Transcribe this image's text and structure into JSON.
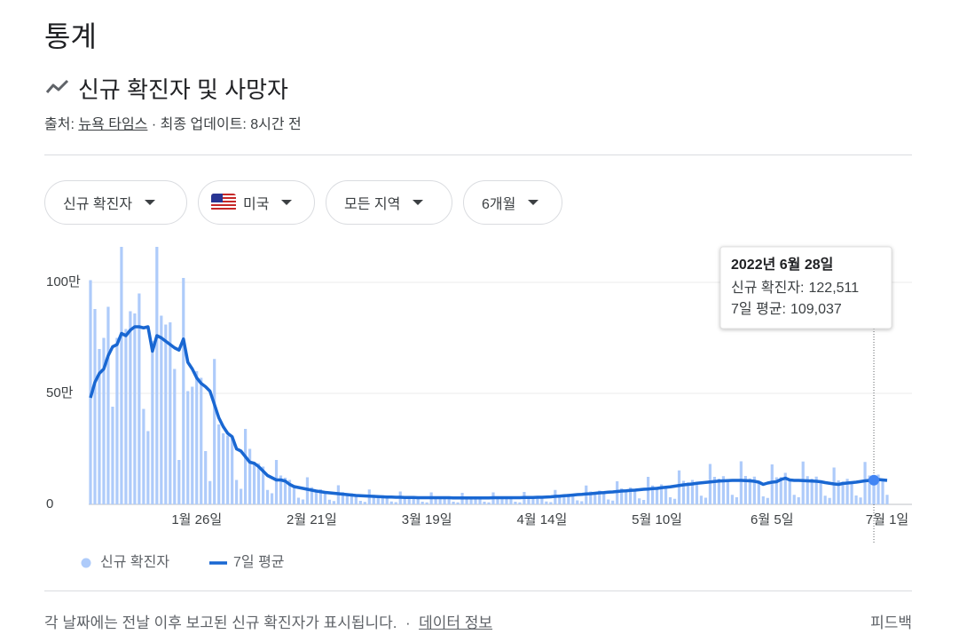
{
  "header": {
    "title": "통계",
    "subtitle": "신규 확진자 및 사망자",
    "source_prefix": "출처:",
    "source": "뉴욕 타임스",
    "updated": "· 최종 업데이트: 8시간 전"
  },
  "filters": [
    "신규 확진자",
    "미국",
    "모든 지역",
    "6개월"
  ],
  "chart_data": {
    "type": "combo",
    "categories": [
      null,
      null,
      null,
      null,
      null,
      null,
      null,
      null,
      null,
      null,
      null,
      null,
      null,
      null,
      null,
      null,
      null,
      null,
      null,
      null,
      null,
      null,
      null,
      null,
      "1월 26일",
      null,
      null,
      null,
      null,
      null,
      null,
      null,
      null,
      null,
      null,
      null,
      null,
      null,
      null,
      null,
      null,
      null,
      null,
      null,
      null,
      null,
      null,
      null,
      null,
      null,
      "2월 21일",
      null,
      null,
      null,
      null,
      null,
      null,
      null,
      null,
      null,
      null,
      null,
      null,
      null,
      null,
      null,
      null,
      null,
      null,
      null,
      null,
      null,
      null,
      null,
      null,
      null,
      "3월 19일",
      null,
      null,
      null,
      null,
      null,
      null,
      null,
      null,
      null,
      null,
      null,
      null,
      null,
      null,
      null,
      null,
      null,
      null,
      null,
      null,
      null,
      null,
      null,
      null,
      null,
      "4월 14일",
      null,
      null,
      null,
      null,
      null,
      null,
      null,
      null,
      null,
      null,
      null,
      null,
      null,
      null,
      null,
      null,
      null,
      null,
      null,
      null,
      null,
      null,
      null,
      null,
      null,
      "5월 10일",
      null,
      null,
      null,
      null,
      null,
      null,
      null,
      null,
      null,
      null,
      null,
      null,
      null,
      null,
      null,
      null,
      null,
      null,
      null,
      null,
      null,
      null,
      null,
      null,
      null,
      "6월 5일",
      null,
      null,
      null,
      null,
      null,
      null,
      null,
      null,
      null,
      null,
      null,
      null,
      null,
      null,
      null,
      null,
      null,
      null,
      null,
      null,
      null,
      null,
      null,
      null,
      null,
      "7월 1일"
    ],
    "series": [
      {
        "name": "신규 확진자",
        "type": "bar",
        "color": "#aecbfa",
        "values": [
          1010000,
          880000,
          700000,
          750000,
          890000,
          440000,
          750000,
          1160000,
          790000,
          870000,
          860000,
          950000,
          430000,
          330000,
          735000,
          1160000,
          850000,
          810000,
          820000,
          610000,
          200000,
          1020000,
          510000,
          530000,
          600000,
          570000,
          240000,
          105000,
          655000,
          360000,
          320000,
          310000,
          300000,
          110000,
          70000,
          340000,
          250000,
          190000,
          185000,
          170000,
          65000,
          50000,
          200000,
          130000,
          120000,
          110000,
          80000,
          30000,
          22000,
          122000,
          77000,
          66000,
          68000,
          54000,
          21000,
          15000,
          86000,
          55000,
          48000,
          50000,
          40000,
          16000,
          11000,
          67000,
          43000,
          39000,
          41000,
          33000,
          13000,
          10000,
          58000,
          37000,
          34000,
          37000,
          30000,
          12000,
          9000,
          54000,
          36000,
          33000,
          36000,
          30000,
          12000,
          9000,
          52000,
          35000,
          32000,
          35000,
          29000,
          12000,
          9000,
          54000,
          36000,
          33000,
          36000,
          30000,
          12000,
          9000,
          56000,
          37000,
          34000,
          38000,
          32000,
          13000,
          10000,
          65000,
          44000,
          43000,
          48000,
          42000,
          18000,
          14000,
          85000,
          58000,
          55000,
          62000,
          53000,
          22000,
          17000,
          104000,
          72000,
          67000,
          76000,
          64000,
          27000,
          20000,
          124000,
          85000,
          79000,
          90000,
          77000,
          32000,
          25000,
          153000,
          106000,
          99000,
          110000,
          95000,
          39000,
          30000,
          182000,
          124000,
          116000,
          127000,
          106000,
          43000,
          32000,
          194000,
          128000,
          117000,
          125000,
          100000,
          36000,
          29000,
          180000,
          122000,
          123000,
          142000,
          110000,
          43000,
          32000,
          193000,
          127000,
          116000,
          125000,
          102000,
          39000,
          29000,
          166000,
          108000,
          103000,
          115000,
          98000,
          40000,
          31000,
          191000,
          130000,
          122511,
          134000,
          110000,
          43000
        ]
      },
      {
        "name": "7일 평균",
        "type": "line",
        "color": "#1967d2",
        "values": [
          480000,
          550000,
          590000,
          610000,
          670000,
          710000,
          720000,
          770000,
          760000,
          785000,
          800000,
          800000,
          795000,
          800000,
          690000,
          760000,
          750000,
          735000,
          720000,
          705000,
          695000,
          745000,
          640000,
          610000,
          570000,
          545000,
          530000,
          510000,
          450000,
          390000,
          350000,
          320000,
          305000,
          250000,
          240000,
          215000,
          190000,
          185000,
          170000,
          150000,
          130000,
          120000,
          110000,
          110000,
          105000,
          90000,
          80000,
          76000,
          72000,
          68000,
          64000,
          60000,
          57000,
          54000,
          52000,
          50000,
          48000,
          46000,
          44000,
          42000,
          40000,
          39000,
          38000,
          37000,
          36000,
          35000,
          34000,
          33000,
          33000,
          32000,
          32000,
          31000,
          31000,
          31000,
          30000,
          30000,
          30000,
          30000,
          30000,
          30000,
          30000,
          30000,
          29000,
          29000,
          29000,
          29000,
          29000,
          29000,
          29000,
          29000,
          29000,
          30000,
          30000,
          30000,
          30000,
          30000,
          30000,
          30000,
          31000,
          31000,
          31000,
          32000,
          32000,
          33000,
          34000,
          36000,
          37000,
          39000,
          40000,
          42000,
          44000,
          45000,
          47000,
          48000,
          50000,
          52000,
          53000,
          55000,
          56000,
          58000,
          60000,
          61000,
          63000,
          64000,
          66000,
          68000,
          69000,
          71000,
          72000,
          75000,
          77000,
          79000,
          82000,
          85000,
          88000,
          90000,
          92000,
          95000,
          97000,
          99000,
          101000,
          103000,
          105000,
          106000,
          107000,
          108000,
          108000,
          108000,
          107000,
          106000,
          104000,
          100000,
          90000,
          96000,
          100000,
          102000,
          112000,
          118000,
          110000,
          108000,
          108000,
          107000,
          106000,
          105000,
          104000,
          102000,
          98000,
          95000,
          92000,
          90000,
          94000,
          96000,
          98000,
          100000,
          103000,
          106000,
          108000,
          109037,
          112000,
          110000,
          108000
        ]
      }
    ],
    "ylim": [
      0,
      1200000
    ],
    "yticks": [
      {
        "value": 0,
        "label": "0"
      },
      {
        "value": 500000,
        "label": "50만"
      },
      {
        "value": 1000000,
        "label": "100만"
      }
    ],
    "grid": true,
    "tooltip": {
      "title": "2022년 6월 28일",
      "items": [
        {
          "name": "신규 확진자:",
          "value": 122511,
          "label": "122,511"
        },
        {
          "name": "7일 평균:",
          "value": 109037,
          "label": "109,037"
        }
      ]
    }
  },
  "footer": {
    "note": "각 날짜에는 전날 이후 보고된 신규 확진자가 표시됩니다.",
    "separator": "·",
    "link": "데이터 정보",
    "feedback": "피드백"
  }
}
